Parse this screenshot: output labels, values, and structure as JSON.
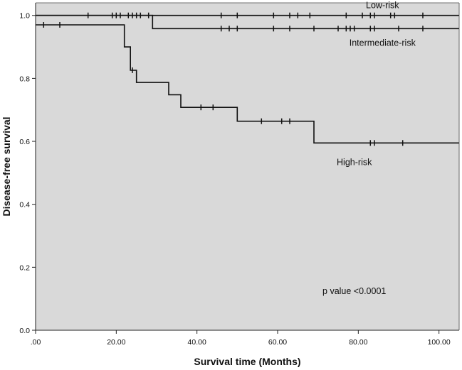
{
  "chart_data": {
    "type": "line",
    "subtype": "kaplan-meier step",
    "title": "",
    "xlabel": "Survival time (Months)",
    "ylabel": "Disease-free survival",
    "xlim": [
      0,
      105
    ],
    "ylim": [
      0,
      1.0
    ],
    "x_ticks": [
      0,
      20,
      40,
      60,
      80,
      100
    ],
    "x_tick_labels": [
      ".00",
      "20.00",
      "40.00",
      "60.00",
      "80.00",
      "100.00"
    ],
    "y_ticks": [
      0.0,
      0.2,
      0.4,
      0.6,
      0.8,
      1.0
    ],
    "y_tick_labels": [
      "0.0",
      "0.2",
      "0.4",
      "0.6",
      "0.8",
      "1.0"
    ],
    "grid": false,
    "legend": "none",
    "background_color": "#d9d9d9",
    "line_color": "#111111",
    "series": [
      {
        "name": "Low-risk",
        "steps": [
          [
            0,
            1.0
          ],
          [
            105,
            1.0
          ]
        ],
        "censored_x": [
          13,
          19,
          20,
          21,
          23,
          24,
          25,
          26,
          28,
          46,
          50,
          59,
          63,
          65,
          68,
          77,
          81,
          83,
          84,
          88,
          89,
          96
        ]
      },
      {
        "name": "Intermediate-risk",
        "steps": [
          [
            0,
            1.0
          ],
          [
            29,
            1.0
          ],
          [
            29,
            0.958
          ],
          [
            105,
            0.958
          ]
        ],
        "censored_x": [
          46,
          48,
          50,
          59,
          63,
          69,
          75,
          77,
          78,
          79,
          83,
          84,
          90,
          96
        ]
      },
      {
        "name": "High-risk",
        "steps": [
          [
            0,
            0.97
          ],
          [
            22,
            0.97
          ],
          [
            22,
            0.9
          ],
          [
            23.5,
            0.9
          ],
          [
            23.5,
            0.826
          ],
          [
            25,
            0.826
          ],
          [
            25,
            0.787
          ],
          [
            33,
            0.787
          ],
          [
            33,
            0.748
          ],
          [
            36,
            0.748
          ],
          [
            36,
            0.708
          ],
          [
            50,
            0.708
          ],
          [
            50,
            0.664
          ],
          [
            69,
            0.664
          ],
          [
            69,
            0.595
          ],
          [
            105,
            0.595
          ]
        ],
        "censored_x": [
          2,
          6,
          24,
          41,
          44,
          56,
          61,
          63,
          83,
          84,
          91
        ]
      }
    ],
    "annotations": [
      {
        "text": "p value <0.0001",
        "x": 79,
        "y": 0.115
      }
    ]
  }
}
